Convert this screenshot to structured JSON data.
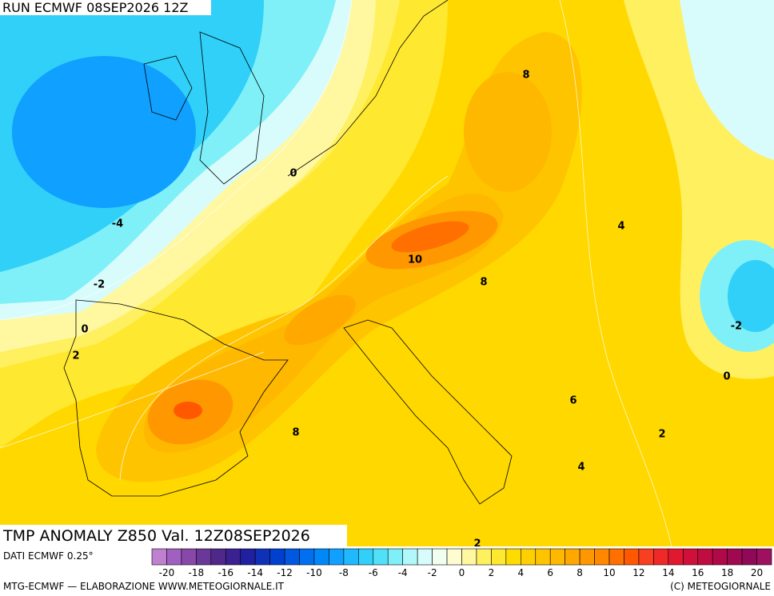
{
  "header": {
    "title": "RUN ECMWF 08SEP2026 12Z"
  },
  "map": {
    "title": "TMP ANOMALY Z850 Val. 12Z08SEP2026",
    "contour_labels": [
      0,
      -4,
      -2,
      0,
      2,
      8,
      4,
      10,
      8,
      -2,
      0,
      6,
      8,
      2,
      4,
      2
    ]
  },
  "colorbar": {
    "source": "DATI ECMWF 0.25°",
    "labels": [
      "-20",
      "-18",
      "-16",
      "-14",
      "-12",
      "-10",
      "-8",
      "-6",
      "-4",
      "-2",
      "0",
      "2",
      "4",
      "6",
      "8",
      "10",
      "12",
      "14",
      "16",
      "18",
      "20"
    ],
    "colors": [
      "#c080d0",
      "#a060c0",
      "#8848a8",
      "#6a3898",
      "#50288a",
      "#3a2090",
      "#2020a0",
      "#1030b8",
      "#0040d0",
      "#0058e0",
      "#0070f0",
      "#0088f8",
      "#10a0ff",
      "#20b8ff",
      "#30d0f8",
      "#50e0f8",
      "#80f0f8",
      "#b0f8fa",
      "#d8fcfc",
      "#f0fff0",
      "#fffcd0",
      "#fff8a0",
      "#fff060",
      "#ffe830",
      "#ffdc00",
      "#ffd000",
      "#ffc400",
      "#ffb800",
      "#ffa800",
      "#ff9800",
      "#ff8800",
      "#ff7000",
      "#ff5800",
      "#f84020",
      "#f02828",
      "#e01830",
      "#d01038",
      "#c00c40",
      "#b00848",
      "#a00850",
      "#900858",
      "#a01060"
    ]
  },
  "footer": {
    "credit": "MTG-ECMWF — ELABORAZIONE WWW.METEOGIORNALE.IT",
    "copyright": "(C) METEOGIORNALE"
  }
}
